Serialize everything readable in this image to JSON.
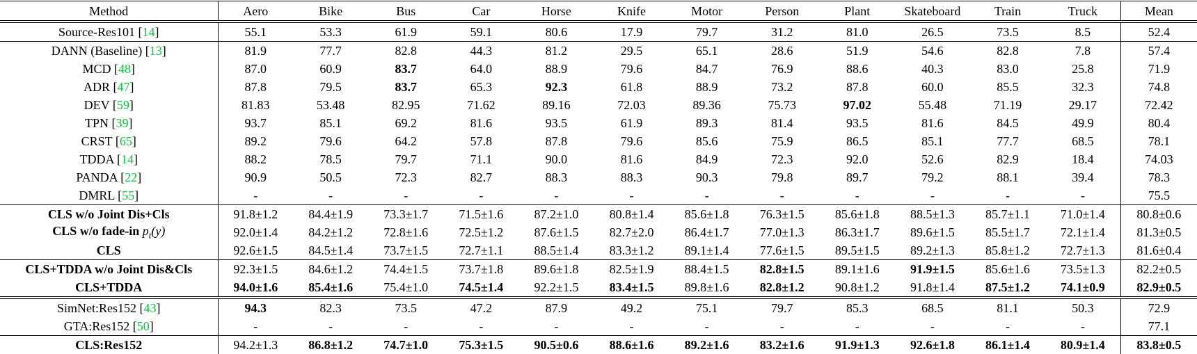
{
  "page": {
    "background": "#ffffff",
    "text_color": "#000000"
  },
  "table": {
    "citation_color": "#00cc33",
    "columns": [
      "Method",
      "Aero",
      "Bike",
      "Bus",
      "Car",
      "Horse",
      "Knife",
      "Motor",
      "Person",
      "Plant",
      "Skateboard",
      "Train",
      "Truck",
      "Mean"
    ],
    "sections": [
      {
        "name": "source-only",
        "rule_above": "double",
        "rows": [
          {
            "method": "Source-Res101",
            "cite": "14",
            "bold_method": false,
            "bold_values": [],
            "values": [
              "55.1",
              "53.3",
              "61.9",
              "59.1",
              "80.6",
              "17.9",
              "79.7",
              "31.2",
              "81.0",
              "26.5",
              "73.5",
              "8.5",
              "52.4"
            ]
          }
        ]
      },
      {
        "name": "da-baselines",
        "rule_above": "single",
        "rows": [
          {
            "method": "DANN (Baseline)",
            "cite": "13",
            "bold_method": false,
            "bold_values": [],
            "values": [
              "81.9",
              "77.7",
              "82.8",
              "44.3",
              "81.2",
              "29.5",
              "65.1",
              "28.6",
              "51.9",
              "54.6",
              "82.8",
              "7.8",
              "57.4"
            ]
          },
          {
            "method": "MCD",
            "cite": "48",
            "bold_method": false,
            "bold_values": [
              2
            ],
            "values": [
              "87.0",
              "60.9",
              "83.7",
              "64.0",
              "88.9",
              "79.6",
              "84.7",
              "76.9",
              "88.6",
              "40.3",
              "83.0",
              "25.8",
              "71.9"
            ]
          },
          {
            "method": "ADR",
            "cite": "47",
            "bold_method": false,
            "bold_values": [
              2,
              4
            ],
            "values": [
              "87.8",
              "79.5",
              "83.7",
              "65.3",
              "92.3",
              "61.8",
              "88.9",
              "73.2",
              "87.8",
              "60.0",
              "85.5",
              "32.3",
              "74.8"
            ]
          },
          {
            "method": "DEV",
            "cite": "59",
            "bold_method": false,
            "bold_values": [
              8
            ],
            "values": [
              "81.83",
              "53.48",
              "82.95",
              "71.62",
              "89.16",
              "72.03",
              "89.36",
              "75.73",
              "97.02",
              "55.48",
              "71.19",
              "29.17",
              "72.42"
            ]
          },
          {
            "method": "TPN",
            "cite": "39",
            "bold_method": false,
            "bold_values": [],
            "values": [
              "93.7",
              "85.1",
              "69.2",
              "81.6",
              "93.5",
              "61.9",
              "89.3",
              "81.4",
              "93.5",
              "81.6",
              "84.5",
              "49.9",
              "80.4"
            ]
          },
          {
            "method": "CRST",
            "cite": "65",
            "bold_method": false,
            "bold_values": [],
            "values": [
              "89.2",
              "79.6",
              "64.2",
              "57.8",
              "87.8",
              "79.6",
              "85.6",
              "75.9",
              "86.5",
              "85.1",
              "77.7",
              "68.5",
              "78.1"
            ]
          },
          {
            "method": "TDDA",
            "cite": "14",
            "bold_method": false,
            "bold_values": [],
            "values": [
              "88.2",
              "78.5",
              "79.7",
              "71.1",
              "90.0",
              "81.6",
              "84.9",
              "72.3",
              "92.0",
              "52.6",
              "82.9",
              "18.4",
              "74.03"
            ]
          },
          {
            "method": "PANDA",
            "cite": "22",
            "bold_method": false,
            "bold_values": [],
            "values": [
              "90.9",
              "50.5",
              "72.3",
              "82.7",
              "88.3",
              "88.3",
              "90.3",
              "79.8",
              "89.7",
              "79.2",
              "88.1",
              "39.4",
              "78.3"
            ]
          },
          {
            "method": "DMRL",
            "cite": "55",
            "bold_method": false,
            "bold_values": [],
            "values": [
              "-",
              "-",
              "-",
              "-",
              "-",
              "-",
              "-",
              "-",
              "-",
              "-",
              "-",
              "-",
              "75.5"
            ]
          }
        ]
      },
      {
        "name": "cls-ablations",
        "rule_above": "single",
        "rows": [
          {
            "method": "CLS w/o Joint Dis+Cls",
            "cite": "",
            "bold_method": true,
            "bold_values": [],
            "values": [
              "91.8±1.2",
              "84.4±1.9",
              "73.3±1.7",
              "71.5±1.6",
              "87.2±1.0",
              "80.8±1.4",
              "85.6±1.8",
              "76.3±1.5",
              "85.6±1.8",
              "88.5±1.3",
              "85.7±1.1",
              "71.0±1.4",
              "80.8±0.6"
            ]
          },
          {
            "method": "CLS w/o fade-in",
            "math": "p_t(y)",
            "cite": "",
            "bold_method": true,
            "bold_values": [],
            "values": [
              "92.0±1.4",
              "84.2±1.2",
              "72.8±1.6",
              "72.5±1.2",
              "87.6±1.5",
              "82.7±2.0",
              "86.4±1.7",
              "77.0±1.3",
              "86.3±1.7",
              "89.6±1.5",
              "85.5±1.7",
              "72.1±1.4",
              "81.3±0.5"
            ]
          },
          {
            "method": "CLS",
            "cite": "",
            "bold_method": true,
            "bold_values": [],
            "values": [
              "92.6±1.5",
              "84.5±1.4",
              "73.7±1.5",
              "72.7±1.1",
              "88.5±1.4",
              "83.3±1.2",
              "89.1±1.4",
              "77.6±1.5",
              "89.5±1.5",
              "89.2±1.3",
              "85.8±1.2",
              "72.7±1.3",
              "81.6±0.4"
            ]
          }
        ]
      },
      {
        "name": "cls-tdda",
        "rule_above": "single",
        "rows": [
          {
            "method": "CLS+TDDA w/o Joint Dis&Cls",
            "cite": "",
            "bold_method": true,
            "bold_values": [
              7,
              9
            ],
            "values": [
              "92.3±1.5",
              "84.6±1.2",
              "74.4±1.5",
              "73.7±1.8",
              "89.6±1.8",
              "82.5±1.9",
              "88.4±1.5",
              "82.8±1.5",
              "89.1±1.6",
              "91.9±1.5",
              "85.6±1.6",
              "73.5±1.3",
              "82.2±0.5"
            ]
          },
          {
            "method": "CLS+TDDA",
            "cite": "",
            "bold_method": true,
            "bold_values": [
              0,
              1,
              3,
              5,
              7,
              10,
              11,
              12
            ],
            "values": [
              "94.0±1.6",
              "85.4±1.6",
              "75.4±1.0",
              "74.5±1.4",
              "92.2±1.5",
              "83.4±1.5",
              "89.8±1.6",
              "82.8±1.2",
              "90.8±1.2",
              "91.8±1.4",
              "87.5±1.2",
              "74.1±0.9",
              "82.9±0.5"
            ]
          }
        ]
      },
      {
        "name": "res152-baselines",
        "rule_above": "double",
        "rows": [
          {
            "method": "SimNet:Res152",
            "cite": "43",
            "bold_method": false,
            "bold_values": [
              0
            ],
            "values": [
              "94.3",
              "82.3",
              "73.5",
              "47.2",
              "87.9",
              "49.2",
              "75.1",
              "79.7",
              "85.3",
              "68.5",
              "81.1",
              "50.3",
              "72.9"
            ]
          },
          {
            "method": "GTA:Res152",
            "cite": "50",
            "bold_method": false,
            "bold_values": [],
            "values": [
              "-",
              "-",
              "-",
              "-",
              "-",
              "-",
              "-",
              "-",
              "-",
              "-",
              "-",
              "-",
              "77.1"
            ]
          }
        ]
      },
      {
        "name": "cls-res152",
        "rule_above": "single",
        "rows": [
          {
            "method": "CLS:Res152",
            "cite": "",
            "bold_method": true,
            "bold_values": [
              1,
              2,
              3,
              4,
              5,
              6,
              7,
              8,
              9,
              10,
              11,
              12
            ],
            "values": [
              "94.2±1.3",
              "86.8±1.2",
              "74.7±1.0",
              "75.3±1.5",
              "90.5±0.6",
              "88.6±1.6",
              "89.2±1.6",
              "83.2±1.6",
              "91.9±1.3",
              "92.6±1.8",
              "86.1±1.4",
              "80.9±1.4",
              "83.8±0.5"
            ]
          }
        ]
      }
    ]
  }
}
